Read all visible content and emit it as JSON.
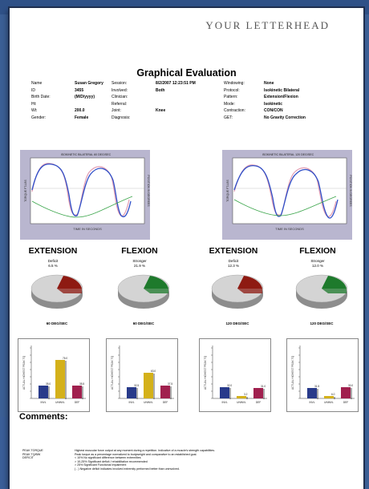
{
  "letterhead": "YOUR LETTERHEAD",
  "title": "Graphical Evaluation",
  "info": {
    "rows": [
      [
        {
          "k": "Name",
          "v": ""
        },
        {
          "k": "",
          "v": "Susan Gregory"
        },
        {
          "k": "Session:",
          "v": ""
        },
        {
          "k": "",
          "v": "8/2/2007 12:23:51 PM"
        },
        {
          "k": "Windowing:",
          "v": ""
        },
        {
          "k": "",
          "v": "None"
        }
      ],
      [
        {
          "k": "ID",
          "v": ""
        },
        {
          "k": "",
          "v": "3455"
        },
        {
          "k": "Involved:",
          "v": ""
        },
        {
          "k": "",
          "v": "Both"
        },
        {
          "k": "Protocol:",
          "v": ""
        },
        {
          "k": "",
          "v": "Isokinetic Bilateral"
        }
      ],
      [
        {
          "k": "Birth Date:",
          "v": ""
        },
        {
          "k": "",
          "v": "(M/D/yyyy)"
        },
        {
          "k": "Clinician:",
          "v": ""
        },
        {
          "k": "",
          "v": ""
        },
        {
          "k": "Pattern:",
          "v": ""
        },
        {
          "k": "",
          "v": "Extension/Flexion"
        }
      ],
      [
        {
          "k": "Ht:",
          "v": ""
        },
        {
          "k": "",
          "v": ""
        },
        {
          "k": "Referral:",
          "v": ""
        },
        {
          "k": "",
          "v": ""
        },
        {
          "k": "Mode:",
          "v": ""
        },
        {
          "k": "",
          "v": "Isokinetic"
        }
      ],
      [
        {
          "k": "Wt:",
          "v": ""
        },
        {
          "k": "",
          "v": "200.0"
        },
        {
          "k": "Joint:",
          "v": ""
        },
        {
          "k": "",
          "v": "Knee"
        },
        {
          "k": "Contraction:",
          "v": ""
        },
        {
          "k": "",
          "v": "CON/CON"
        }
      ],
      [
        {
          "k": "Gender:",
          "v": ""
        },
        {
          "k": "",
          "v": "Female"
        },
        {
          "k": "Diagnosis:",
          "v": ""
        },
        {
          "k": "",
          "v": ""
        },
        {
          "k": "GET:",
          "v": ""
        },
        {
          "k": "",
          "v": "No Gravity Correction"
        }
      ]
    ]
  },
  "torque_charts": [
    {
      "header": "ISOKINETIC BILATERAL 60 DEG/SEC",
      "x_label": "TIME IN SECONDS",
      "y_left": "TORQUE FT-LBS",
      "y_right": "POSITION IN DEGREES"
    },
    {
      "header": "ISOKINETIC BILATERAL 120 DEG/SEC",
      "x_label": "TIME IN SECONDS",
      "y_left": "TORQUE FT-LBS",
      "y_right": "POSITION IN DEGREES"
    }
  ],
  "pies": [
    {
      "label": "EXTENSION",
      "status": "Deficit",
      "pct": "6.5 %",
      "speed": "60 DEG/SEC",
      "slice_color": "#8e1a12"
    },
    {
      "label": "FLEXION",
      "status": "Stronger",
      "pct": "21.9 %",
      "speed": "60 DEG/SEC",
      "slice_color": "#1e7a2c"
    },
    {
      "label": "EXTENSION",
      "status": "Deficit",
      "pct": "12.3 %",
      "speed": "120 DEG/SEC",
      "slice_color": "#8e1a12"
    },
    {
      "label": "FLEXION",
      "status": "Stronger",
      "pct": "12.0 %",
      "speed": "120 DEG/SEC",
      "slice_color": "#1e7a2c"
    }
  ],
  "bars": [
    {
      "ylabel": "ACTUAL HIGHEST PEAK TQ",
      "categories": [
        "INVL",
        "UNINVL",
        "DEF"
      ],
      "labels": [
        "35.0",
        "76.0",
        "35.5"
      ]
    },
    {
      "ylabel": "ACTUAL HIGHEST PEAK TQ",
      "categories": [
        "INVL",
        "UNINVL",
        "DEF"
      ],
      "labels": [
        "32.5",
        "63.0",
        "37.5"
      ]
    },
    {
      "ylabel": "ACTUAL HIGHEST PEAK TQ",
      "categories": [
        "INVL",
        "UNINVL",
        "DEF"
      ],
      "labels": [
        "32.0",
        "3.2",
        "31.0"
      ]
    },
    {
      "ylabel": "ACTUAL HIGHEST PEAK TQ",
      "categories": [
        "INVL",
        "UNINVL",
        "DEF"
      ],
      "labels": [
        "31.5",
        "6.0",
        "30.0"
      ]
    }
  ],
  "comments_title": "Comments:",
  "footnotes": [
    {
      "k": "PEAK TORQUE",
      "v": "Highest muscular force output at any moment during a repetition.  Indicative of a muscle's strength capabilities."
    },
    {
      "k": "PEAK TQ/BW",
      "v": "Peak torque as a percentage normalized to bodyweight and comparative to an established goal."
    },
    {
      "k": "DEFICIT",
      "v": "< 10%  No significant difference between extremities"
    },
    {
      "k": "",
      "v": "> 10-25%  Significant deficit / rehabilitation recommended"
    },
    {
      "k": "",
      "v": "> 25%  Significant Functional Impairment"
    },
    {
      "k": "",
      "v": "( - ) Negative deficit indicates involved extremity performed better than uninvolved."
    }
  ]
}
